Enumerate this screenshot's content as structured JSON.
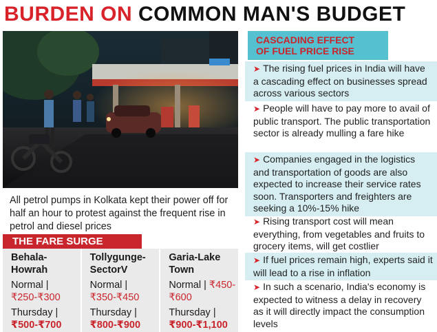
{
  "headline": {
    "part_red": "BURDEN ON",
    "part_black": "COMMON MAN'S BUDGET"
  },
  "photo": {
    "description_icon": "night-petrol-pump-photo"
  },
  "caption": "All petrol pumps in Kolkata kept their power off for half an hour to protest against the frequent rise in petrol and diesel prices",
  "fare_surge": {
    "title": "THE FARE SURGE",
    "normal_label": "Normal |",
    "thursday_label": "Thursday |",
    "routes": [
      {
        "name_line1": "Behala-",
        "name_line2": "Howrah",
        "normal": "₹250-₹300",
        "thursday": "₹500-₹700"
      },
      {
        "name_line1": "Tollygunge-",
        "name_line2": "SectorV",
        "normal": "₹350-₹450",
        "thursday": "₹800-₹900"
      },
      {
        "name_line1": "Garia-Lake",
        "name_line2": "Town",
        "normal_inline": "₹450-",
        "normal_rest": "₹600",
        "thursday": "₹900-₹1,100"
      }
    ]
  },
  "side": {
    "title_line1": "CASCADING EFFECT",
    "title_line2": "OF FUEL PRICE RISE",
    "arrow": "➤",
    "bullets": [
      "The rising fuel prices in India will have a cascading effect on businesses spread across various sectors",
      "People will have to pay more to avail of public transport. The public transportation sector is already mulling a fare hike",
      "Companies engaged in the logistics and transportation of goods are also expected to increase their service rates soon. Transporters and freighters are seeking a 10%-15% hike",
      "Rising transport cost will mean everything, from vegetables and fruits to grocery items, will get costlier",
      "If fuel prices remain high, experts said it will lead to a rise in inflation",
      "In such a scenario, India's economy is expected to witness a delay in recovery as it will directly impact the consumption levels"
    ]
  },
  "colors": {
    "accent_red": "#d8232a",
    "title_cyan": "#55c1d0",
    "bullet_tint": "#d6eef2",
    "table_gray": "#eaeaea"
  }
}
